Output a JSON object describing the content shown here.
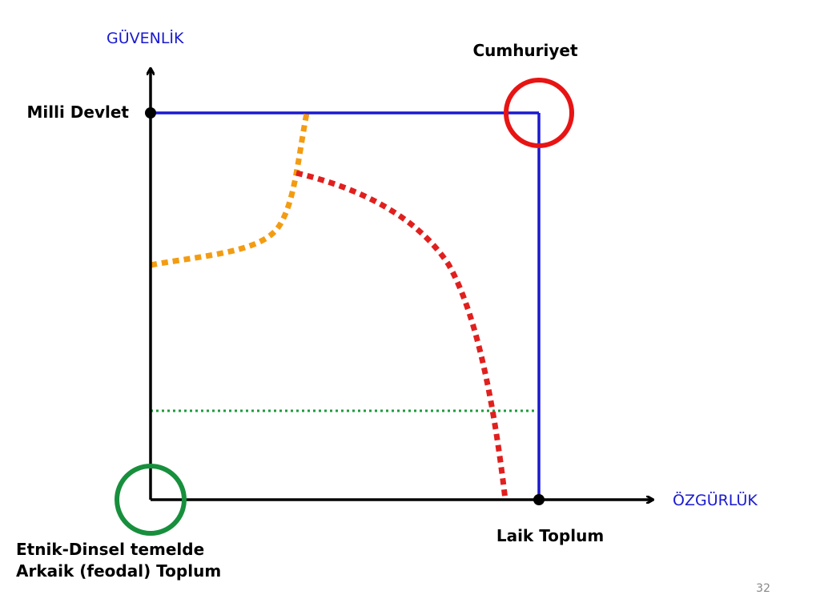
{
  "y_axis_label": "GÜVENLİK",
  "x_axis_label": "ÖZGÜRLÜK",
  "labels": {
    "milli_devlet": "Milli Devlet",
    "cumhuriyet": "Cumhuriyet",
    "laik_toplum": "Laik Toplum",
    "arkaik_line1": "Etnik-Dinsel temelde",
    "arkaik_line2": "Arkaik (feodal) Toplum"
  },
  "page_number": "32",
  "colors": {
    "axis": "#000000",
    "axis_label": "#1a1ad0",
    "square": "#1a1ad0",
    "orange_curve": "#f39c12",
    "red_curve": "#e0201e",
    "green_line": "#1f9a3e",
    "cumhuriyet_circle": "#e81414",
    "arkaik_circle": "#178f3c"
  }
}
